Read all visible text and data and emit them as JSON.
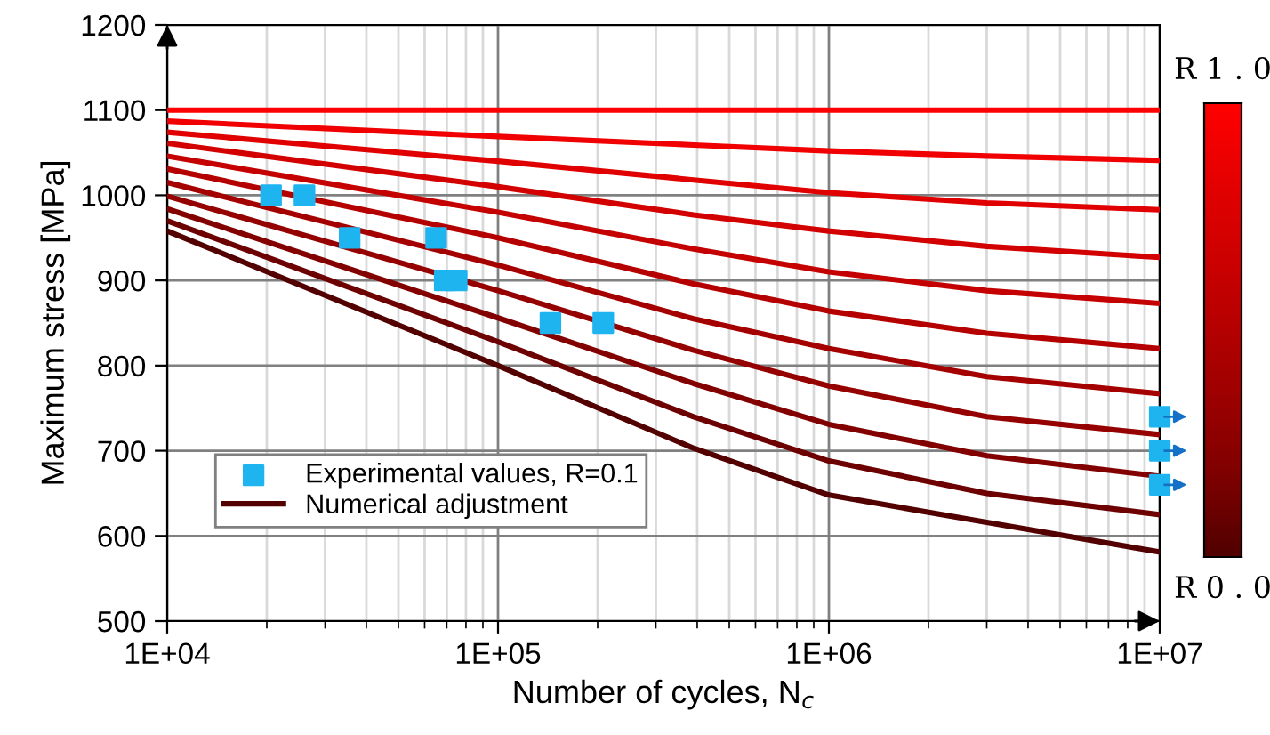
{
  "chart_data": {
    "type": "line",
    "xlabel": "Number of cycles, N$_{c}$",
    "ylabel": "Maximum stress [MPa]",
    "log": "x",
    "xlim": [
      10000,
      10000000
    ],
    "xticks": [
      {
        "value": 10000,
        "label": "1E+04"
      },
      {
        "value": 100000,
        "label": "1E+05"
      },
      {
        "value": 1000000,
        "label": "1E+06"
      },
      {
        "value": 10000000,
        "label": "1E+07"
      }
    ],
    "ylim": [
      500,
      1200
    ],
    "yticks": [
      500,
      600,
      700,
      800,
      900,
      1000,
      1100,
      1200
    ],
    "grid": true,
    "legend": "bottom left",
    "x": [
      10000,
      100000,
      390000,
      1000000,
      3000000,
      10000000
    ],
    "annotations": [
      "R 1 . 0",
      "R 0 . 0"
    ],
    "series": [
      {
        "color": "#ff0000",
        "values": [
          1100,
          1100,
          1100,
          1100,
          1100,
          1100
        ]
      },
      {
        "color": "#f00000",
        "values": [
          1087,
          1069,
          1059,
          1052,
          1046,
          1041
        ]
      },
      {
        "color": "#e00000",
        "values": [
          1074,
          1040,
          1018,
          1003,
          991,
          983
        ]
      },
      {
        "color": "#d30000",
        "values": [
          1061,
          1010,
          977,
          958,
          940,
          927
        ]
      },
      {
        "color": "#c40000",
        "values": [
          1046,
          980,
          937,
          910,
          888,
          873
        ]
      },
      {
        "color": "#b50000",
        "values": [
          1031,
          950,
          896,
          864,
          838,
          820
        ]
      },
      {
        "color": "#a50000",
        "values": [
          1015,
          918,
          855,
          820,
          787,
          767
        ]
      },
      {
        "color": "#950000",
        "values": [
          999,
          888,
          818,
          776,
          740,
          719
        ]
      },
      {
        "color": "#830000",
        "values": [
          984,
          856,
          779,
          731,
          694,
          670
        ]
      },
      {
        "color": "#6d0000",
        "values": [
          970,
          828,
          740,
          688,
          650,
          625
        ]
      },
      {
        "name": "Numerical adjustment",
        "color": "#520000",
        "values": [
          958,
          800,
          703,
          648,
          616,
          581
        ]
      },
      {
        "type": "scatter",
        "name": "Experimental values, R=0.1",
        "color": "#1eb4f0",
        "marker": "square",
        "x": [
          20600,
          26000,
          35600,
          65000,
          69000,
          75000,
          144000,
          208000
        ],
        "values": [
          1000,
          1000,
          950,
          950,
          900,
          900,
          850,
          850
        ]
      },
      {
        "type": "scatter",
        "color": "#1eb4f0",
        "marker": "square",
        "x": [
          10000000,
          10000000,
          10000000
        ],
        "values": [
          740,
          700,
          660
        ]
      }
    ]
  }
}
